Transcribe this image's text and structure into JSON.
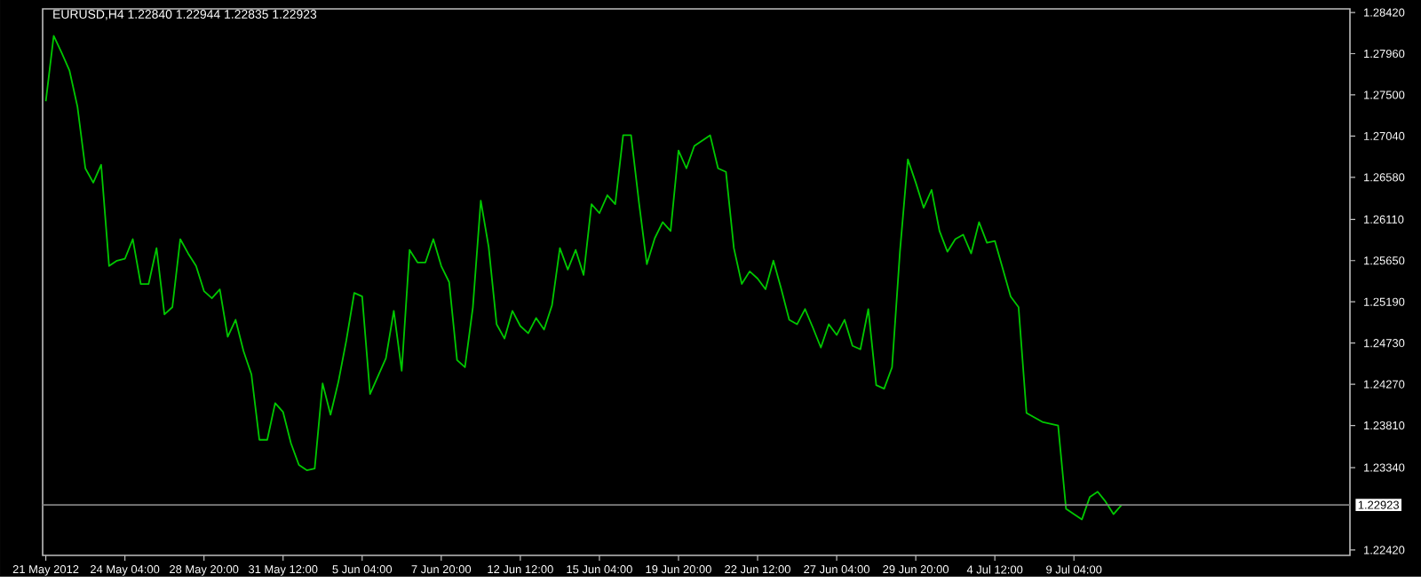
{
  "chart_data": {
    "type": "line",
    "title": "EURUSD,H4  1.22840 1.22944 1.22835 1.22923",
    "categories": [
      "21 May 2012",
      null,
      null,
      null,
      null,
      null,
      null,
      null,
      null,
      null,
      "24 May 04:00",
      null,
      null,
      null,
      null,
      null,
      null,
      null,
      null,
      null,
      "28 May 20:00",
      null,
      null,
      null,
      null,
      null,
      null,
      null,
      null,
      null,
      "31 May 12:00",
      null,
      null,
      null,
      null,
      null,
      null,
      null,
      null,
      null,
      "5 Jun 04:00",
      null,
      null,
      null,
      null,
      null,
      null,
      null,
      null,
      null,
      "7 Jun 20:00",
      null,
      null,
      null,
      null,
      null,
      null,
      null,
      null,
      null,
      "12 Jun 12:00",
      null,
      null,
      null,
      null,
      null,
      null,
      null,
      null,
      null,
      "15 Jun 04:00",
      null,
      null,
      null,
      null,
      null,
      null,
      null,
      null,
      null,
      "19 Jun 20:00",
      null,
      null,
      null,
      null,
      null,
      null,
      null,
      null,
      null,
      "22 Jun 12:00",
      null,
      null,
      null,
      null,
      null,
      null,
      null,
      null,
      null,
      "27 Jun 04:00",
      null,
      null,
      null,
      null,
      null,
      null,
      null,
      null,
      null,
      "29 Jun 20:00",
      null,
      null,
      null,
      null,
      null,
      null,
      null,
      null,
      null,
      "4 Jul 12:00",
      null,
      null,
      null,
      null,
      null,
      null,
      null,
      null,
      null,
      "9 Jul 04:00",
      null,
      null,
      null,
      null,
      null,
      null,
      null,
      null,
      null,
      null,
      null,
      null,
      null,
      null,
      null,
      null,
      null,
      null,
      null,
      null,
      null,
      null,
      null,
      null,
      null,
      null,
      null,
      null,
      null,
      null,
      null,
      null,
      null,
      null
    ],
    "series": [
      {
        "color": "#00c800",
        "values": [
          1.2743,
          1.2816,
          1.2797,
          1.2777,
          1.2737,
          1.2668,
          1.2652,
          1.2672,
          1.2559,
          1.2565,
          1.2567,
          1.2589,
          1.2539,
          1.2539,
          1.2579,
          1.2505,
          1.2513,
          1.2589,
          1.2573,
          1.2559,
          1.2531,
          1.2523,
          1.2533,
          1.248,
          1.2499,
          1.2464,
          1.2438,
          1.2365,
          1.2365,
          1.2406,
          1.2396,
          1.2361,
          1.2337,
          1.2331,
          1.2333,
          1.2428,
          1.2393,
          1.243,
          1.2476,
          1.2529,
          1.2525,
          1.2416,
          1.2436,
          1.2456,
          1.2509,
          1.2442,
          1.2577,
          1.2563,
          1.2563,
          1.2589,
          1.2559,
          1.2541,
          1.2454,
          1.2446,
          1.2513,
          1.2632,
          1.258,
          1.2494,
          1.2478,
          1.2509,
          1.2492,
          1.2484,
          1.2501,
          1.2488,
          1.2515,
          1.2579,
          1.2555,
          1.2577,
          1.2549,
          1.2628,
          1.2618,
          1.2638,
          1.2628,
          1.2705,
          1.2705,
          1.263,
          1.2561,
          1.259,
          1.2608,
          1.2598,
          1.2688,
          1.2668,
          1.2693,
          1.2699,
          1.2705,
          1.2668,
          1.2664,
          1.2579,
          1.2539,
          1.2553,
          1.2545,
          1.2533,
          1.2565,
          1.2533,
          1.2499,
          1.2494,
          1.2511,
          1.249,
          1.2468,
          1.2494,
          1.2482,
          1.2499,
          1.247,
          1.2466,
          1.2511,
          1.2426,
          1.2422,
          1.2446,
          1.2575,
          1.2678,
          1.2652,
          1.2624,
          1.2644,
          1.2598,
          1.2575,
          1.2589,
          1.2594,
          1.2573,
          1.2608,
          1.2585,
          1.2587,
          1.2556,
          1.2525,
          1.2513,
          1.2395,
          1.239,
          1.2385,
          1.2383,
          1.2381,
          1.2288,
          1.2282,
          1.2276,
          1.2301,
          1.2307,
          1.2296,
          1.2282,
          1.2292,
          null,
          null,
          null,
          null,
          null,
          null,
          null,
          null,
          null,
          null,
          null,
          null,
          null,
          null,
          null,
          null,
          null,
          null,
          null,
          null,
          null,
          null,
          null,
          null,
          null,
          null,
          null,
          null
        ]
      }
    ],
    "ylim": [
      1.2236,
      1.2846
    ],
    "yticks": [
      {
        "value": 1.2842,
        "label": "1.28420"
      },
      {
        "value": 1.2796,
        "label": "1.27960"
      },
      {
        "value": 1.275,
        "label": "1.27500"
      },
      {
        "value": 1.2704,
        "label": "1.27040"
      },
      {
        "value": 1.2658,
        "label": "1.26580"
      },
      {
        "value": 1.2611,
        "label": "1.26110"
      },
      {
        "value": 1.2565,
        "label": "1.25650"
      },
      {
        "value": 1.2519,
        "label": "1.25190"
      },
      {
        "value": 1.2473,
        "label": "1.24730"
      },
      {
        "value": 1.2427,
        "label": "1.24270"
      },
      {
        "value": 1.2381,
        "label": "1.23810"
      },
      {
        "value": 1.2334,
        "label": "1.23340"
      },
      {
        "value": 1.2242,
        "label": "1.22420"
      }
    ],
    "ref_lines": [
      {
        "axis": "y",
        "value": 1.22923,
        "label": "1.22923",
        "color": "#808080"
      }
    ]
  }
}
